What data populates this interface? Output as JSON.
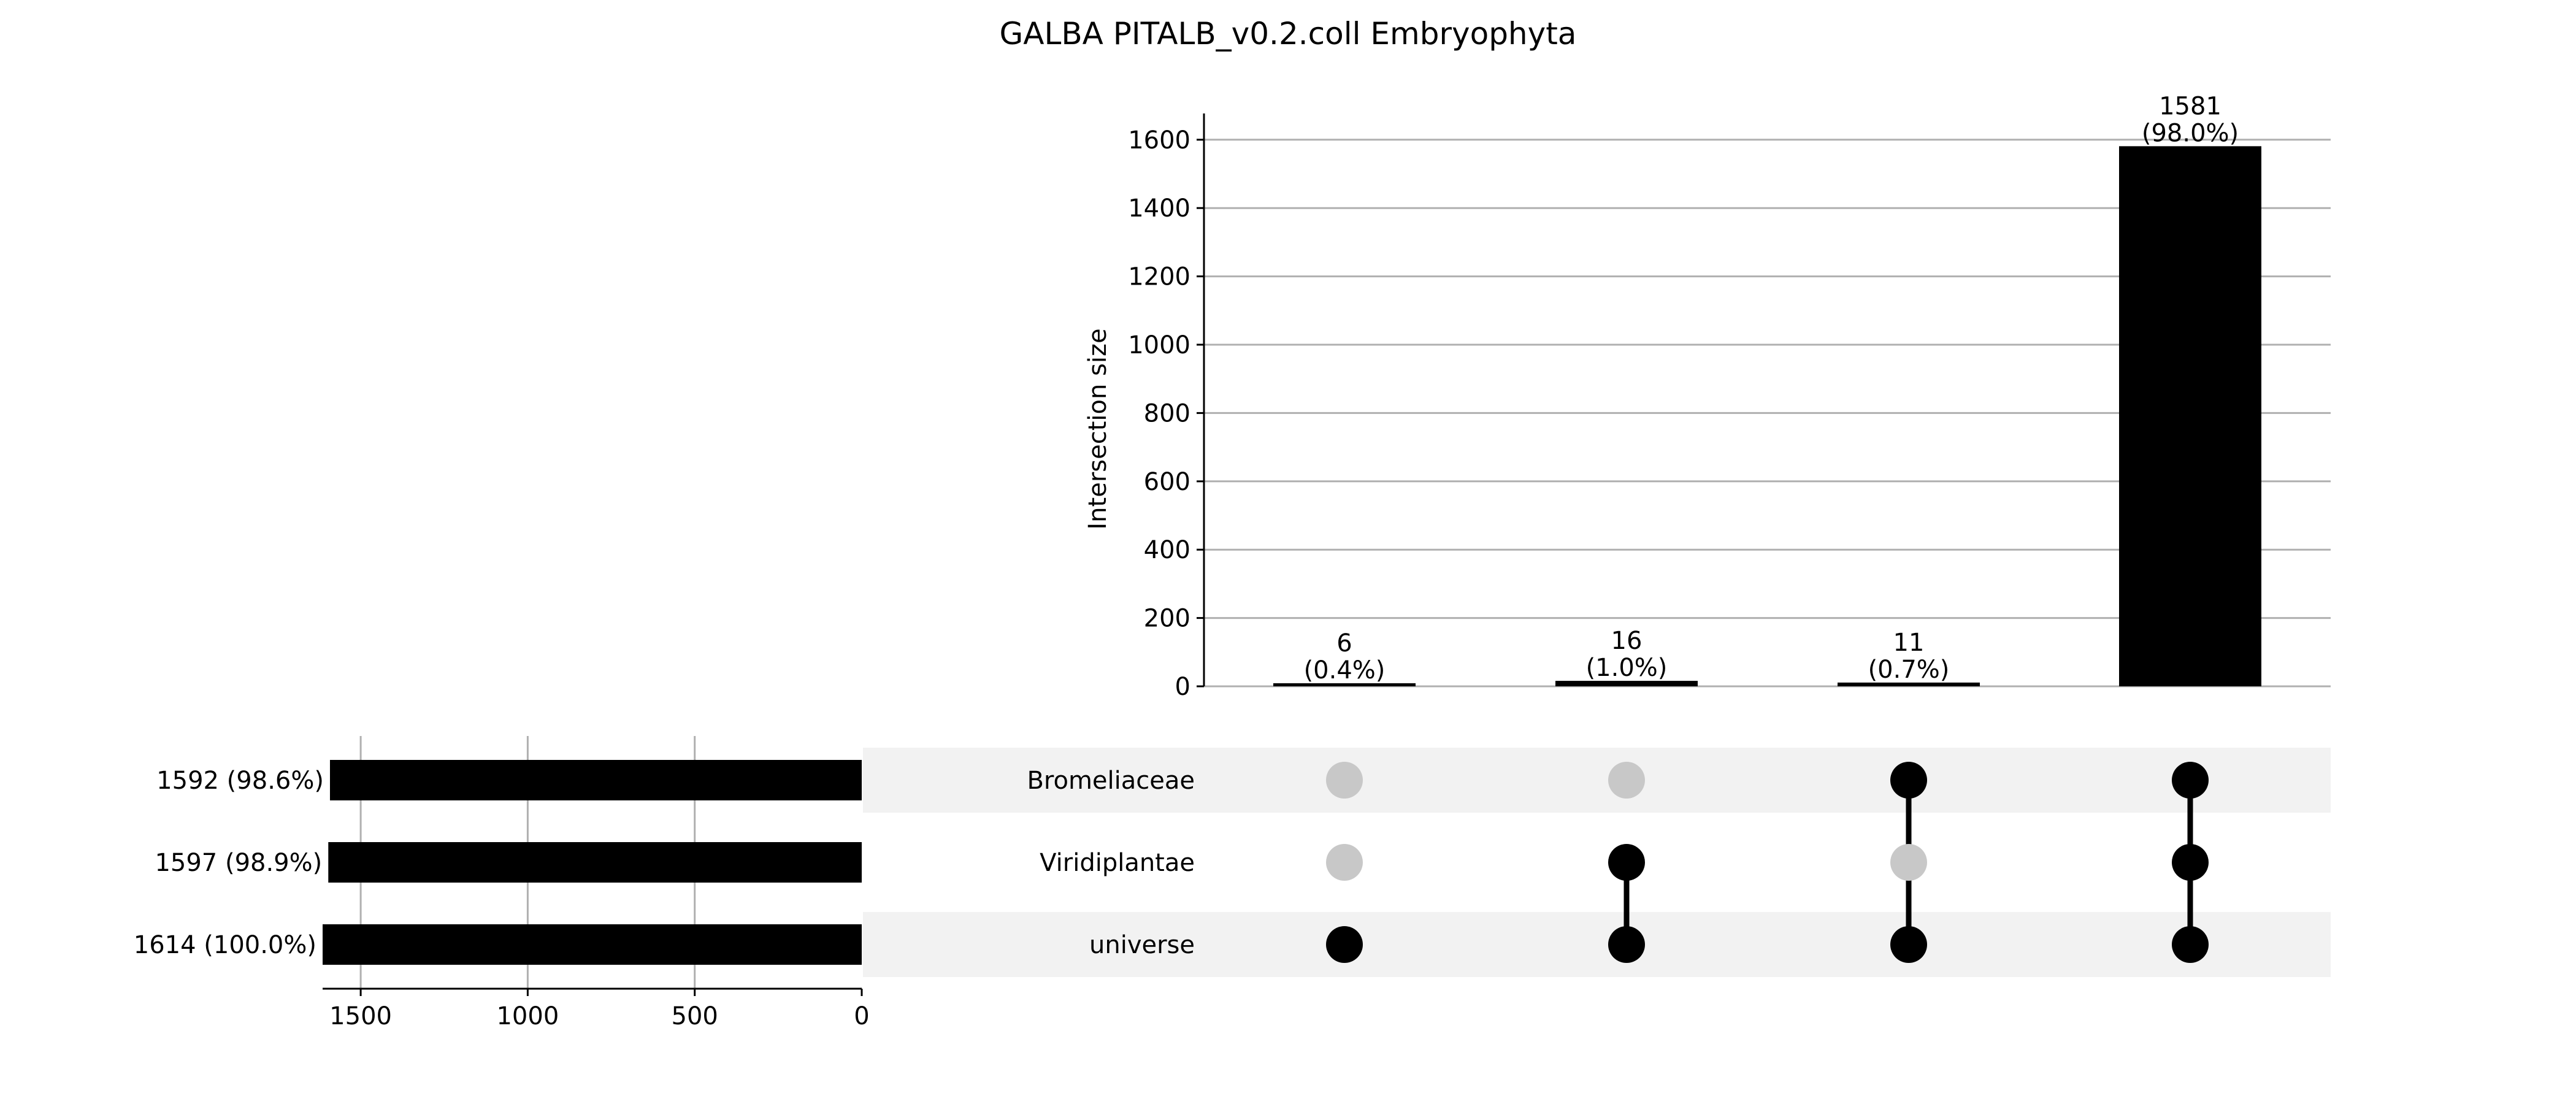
{
  "chart_data": {
    "type": "upset",
    "title": "GALBA PITALB_v0.2.coll Embryophyta",
    "ylabel": "Intersection size",
    "ylim": [
      0,
      1614
    ],
    "yticks": [
      0,
      200,
      400,
      600,
      800,
      1000,
      1200,
      1400,
      1600
    ],
    "sets": [
      {
        "name": "Bromeliaceae",
        "size": 1592,
        "label": "1592 (98.6%)"
      },
      {
        "name": "Viridiplantae",
        "size": 1597,
        "label": "1597 (98.9%)"
      },
      {
        "name": "universe",
        "size": 1614,
        "label": "1614 (100.0%)"
      }
    ],
    "set_size_xlim": [
      0,
      1614
    ],
    "set_size_xticks": [
      1500,
      1000,
      500,
      0
    ],
    "intersections": [
      {
        "members": [
          "universe"
        ],
        "size": 6,
        "count_label": "6",
        "pct_label": "(0.4%)"
      },
      {
        "members": [
          "Viridiplantae",
          "universe"
        ],
        "size": 16,
        "count_label": "16",
        "pct_label": "(1.0%)"
      },
      {
        "members": [
          "Bromeliaceae",
          "universe"
        ],
        "size": 11,
        "count_label": "11",
        "pct_label": "(0.7%)"
      },
      {
        "members": [
          "Bromeliaceae",
          "Viridiplantae",
          "universe"
        ],
        "size": 1581,
        "count_label": "1581",
        "pct_label": "(98.0%)"
      }
    ],
    "colors": {
      "bar": "#000000",
      "dot_active": "#000000",
      "dot_inactive": "#c8c8c8",
      "stripe": "#f2f2f2",
      "grid": "#b0b0b0"
    },
    "grid": true
  }
}
